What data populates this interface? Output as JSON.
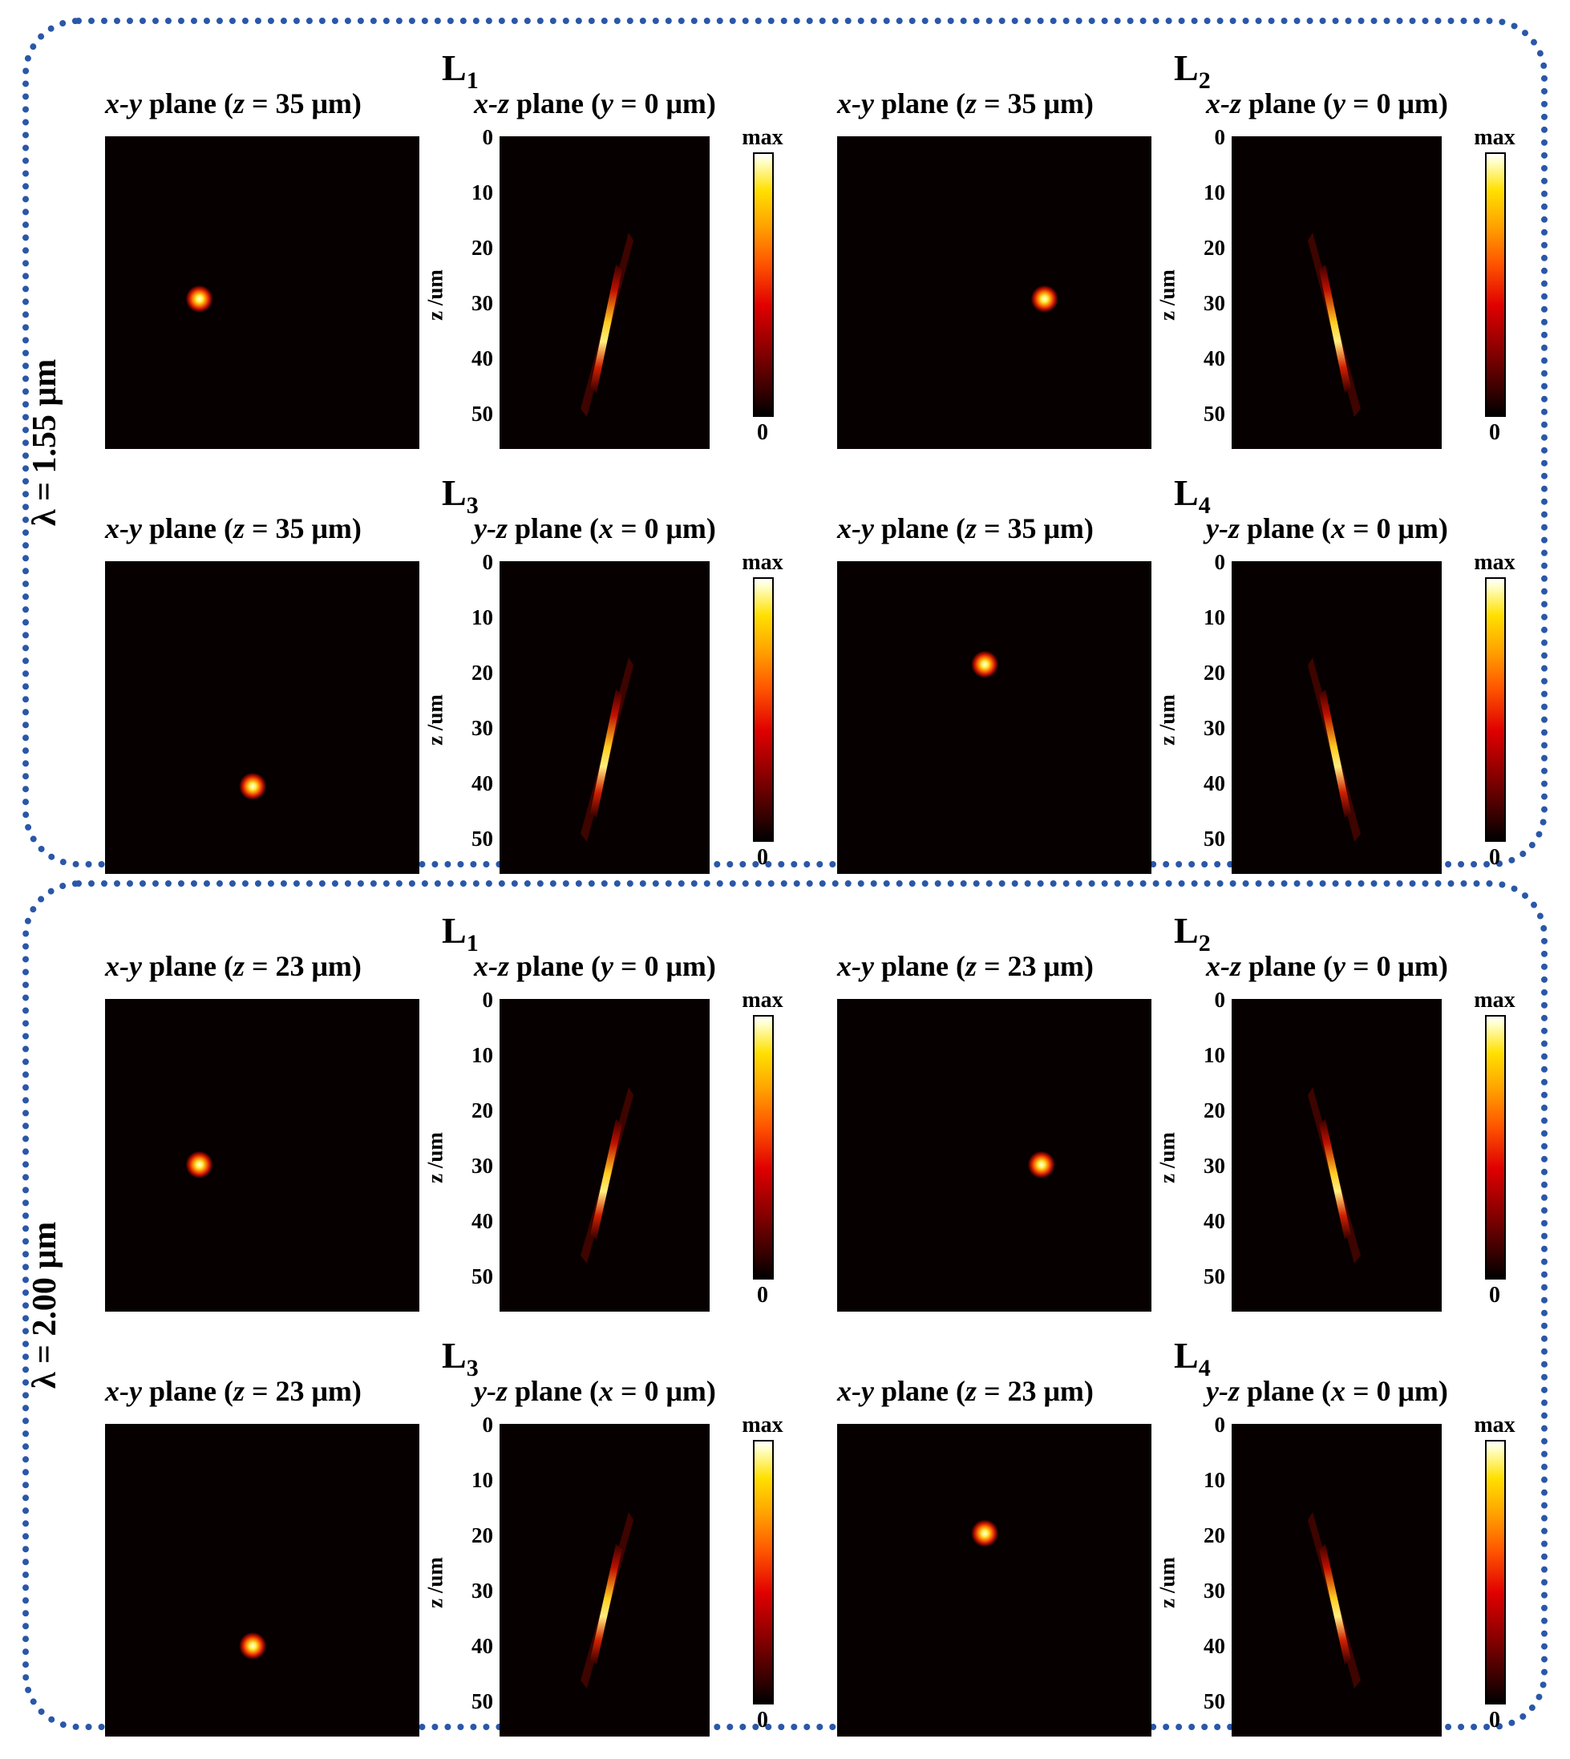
{
  "sections": [
    {
      "wavelength": "λ = 1.55 μm",
      "quads": [
        {
          "label": "L",
          "sub": "1",
          "xy_title": [
            "x-y",
            " plane (",
            "z",
            " = 35 μm)"
          ],
          "side_title": [
            "x-z",
            " plane (",
            "y",
            " = 0 μm)"
          ],
          "spot": [
            0.3,
            0.52
          ],
          "streak": "right"
        },
        {
          "label": "L",
          "sub": "2",
          "xy_title": [
            "x-y",
            " plane (",
            "z",
            " = 35 μm)"
          ],
          "side_title": [
            "x-z",
            " plane (",
            "y",
            " = 0 μm)"
          ],
          "spot": [
            0.66,
            0.52
          ],
          "streak": "left"
        },
        {
          "label": "L",
          "sub": "3",
          "xy_title": [
            "x-y",
            " plane (",
            "z",
            " = 35 μm)"
          ],
          "side_title": [
            "y-z",
            " plane (",
            "x",
            " = 0 μm)"
          ],
          "spot": [
            0.47,
            0.72
          ],
          "streak": "right"
        },
        {
          "label": "L",
          "sub": "4",
          "xy_title": [
            "x-y",
            " plane (",
            "z",
            " = 35 μm)"
          ],
          "side_title": [
            "y-z",
            " plane (",
            "x",
            " = 0 μm)"
          ],
          "spot": [
            0.47,
            0.33
          ],
          "streak": "left"
        }
      ]
    },
    {
      "wavelength": "λ = 2.00 μm",
      "quads": [
        {
          "label": "L",
          "sub": "1",
          "xy_title": [
            "x-y",
            " plane (",
            "z",
            " = 23 μm)"
          ],
          "side_title": [
            "x-z",
            " plane (",
            "y",
            " = 0 μm)"
          ],
          "spot": [
            0.3,
            0.53
          ],
          "streak": "right"
        },
        {
          "label": "L",
          "sub": "2",
          "xy_title": [
            "x-y",
            " plane (",
            "z",
            " = 23 μm)"
          ],
          "side_title": [
            "x-z",
            " plane (",
            "y",
            " = 0 μm)"
          ],
          "spot": [
            0.65,
            0.53
          ],
          "streak": "left"
        },
        {
          "label": "L",
          "sub": "3",
          "xy_title": [
            "x-y",
            " plane (",
            "z",
            " = 23 μm)"
          ],
          "side_title": [
            "y-z",
            " plane (",
            "x",
            " = 0 μm)"
          ],
          "spot": [
            0.47,
            0.71
          ],
          "streak": "right"
        },
        {
          "label": "L",
          "sub": "4",
          "xy_title": [
            "x-y",
            " plane (",
            "z",
            " = 23 μm)"
          ],
          "side_title": [
            "y-z",
            " plane (",
            "x",
            " = 0 μm)"
          ],
          "spot": [
            0.47,
            0.35
          ],
          "streak": "left"
        }
      ]
    }
  ],
  "axis": {
    "ylabel": "z /um",
    "ticks": [
      "0",
      "10",
      "20",
      "30",
      "40",
      "50"
    ]
  },
  "colorbar": {
    "max_label": "max",
    "min_label": "0"
  },
  "colors": {
    "border": "#2a57a8",
    "background": "#070000"
  }
}
